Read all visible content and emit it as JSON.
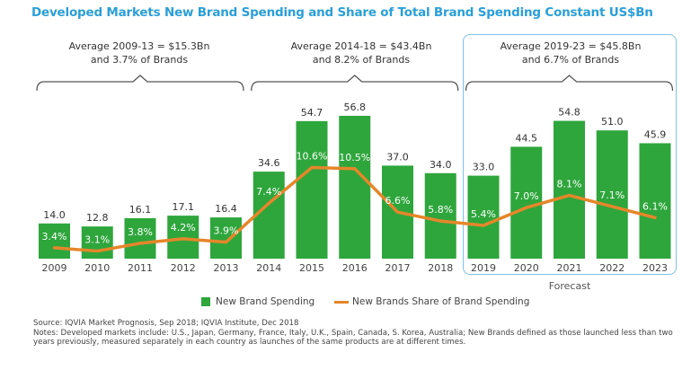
{
  "title": "Developed Markets New Brand Spending and Share of Total Brand Spending Constant US$Bn",
  "annotations": [
    {
      "line1": "Average 2009-13 = $15.3Bn",
      "line2": "and 3.7% of Brands"
    },
    {
      "line1": "Average 2014-18 = $43.4Bn",
      "line2": "and 8.2% of Brands"
    },
    {
      "line1": "Average 2019-23 = $45.8Bn",
      "line2": "and 6.7% of Brands"
    }
  ],
  "forecast_label": "Forecast",
  "legend": {
    "bar": "New Brand Spending",
    "line": "New Brands Share of Brand Spending"
  },
  "source": "Source: IQVIA Market Prognosis, Sep 2018; IQVIA Institute, Dec 2018",
  "notes": "Notes: Developed markets include: U.S., Japan, Germany, France, Italy, U.K., Spain, Canada, S. Korea, Australia; New Brands defined as those launched less than two years previously, measured separately in each country as launches of the same products are at different times.",
  "colors": {
    "bar": "#2ea63c",
    "line": "#e6862a",
    "title": "#2a9fd6",
    "forecast_box": "#7cc3e6"
  },
  "chart_data": {
    "type": "bar",
    "title": "Developed Markets New Brand Spending and Share of Total Brand Spending Constant US$Bn",
    "xlabel": "",
    "ylabel": "",
    "categories": [
      "2009",
      "2010",
      "2011",
      "2012",
      "2013",
      "2014",
      "2015",
      "2016",
      "2017",
      "2018",
      "2019",
      "2020",
      "2021",
      "2022",
      "2023"
    ],
    "series": [
      {
        "name": "New Brand Spending",
        "type": "bar",
        "unit": "US$Bn",
        "values": [
          14.0,
          12.8,
          16.1,
          17.1,
          16.4,
          34.6,
          54.7,
          56.8,
          37.0,
          34.0,
          33.0,
          44.5,
          54.8,
          51.0,
          45.9
        ],
        "labels": [
          "14.0",
          "12.8",
          "16.1",
          "17.1",
          "16.4",
          "34.6",
          "54.7",
          "56.8",
          "37.0",
          "34.0",
          "33.0",
          "44.5",
          "54.8",
          "51.0",
          "45.9"
        ]
      },
      {
        "name": "New Brands Share of Brand Spending",
        "type": "line",
        "unit": "%",
        "values": [
          3.4,
          3.1,
          3.8,
          4.2,
          3.9,
          7.4,
          10.6,
          10.5,
          6.6,
          5.8,
          5.4,
          7.0,
          8.1,
          7.1,
          6.1
        ],
        "labels": [
          "3.4%",
          "3.1%",
          "3.8%",
          "4.2%",
          "3.9%",
          "7.4%",
          "10.6%",
          "10.5%",
          "6.6%",
          "5.8%",
          "5.4%",
          "7.0%",
          "8.1%",
          "7.1%",
          "6.1%"
        ]
      }
    ],
    "forecast_categories": [
      "2019",
      "2020",
      "2021",
      "2022",
      "2023"
    ],
    "legend_position": "bottom",
    "grid": false
  }
}
